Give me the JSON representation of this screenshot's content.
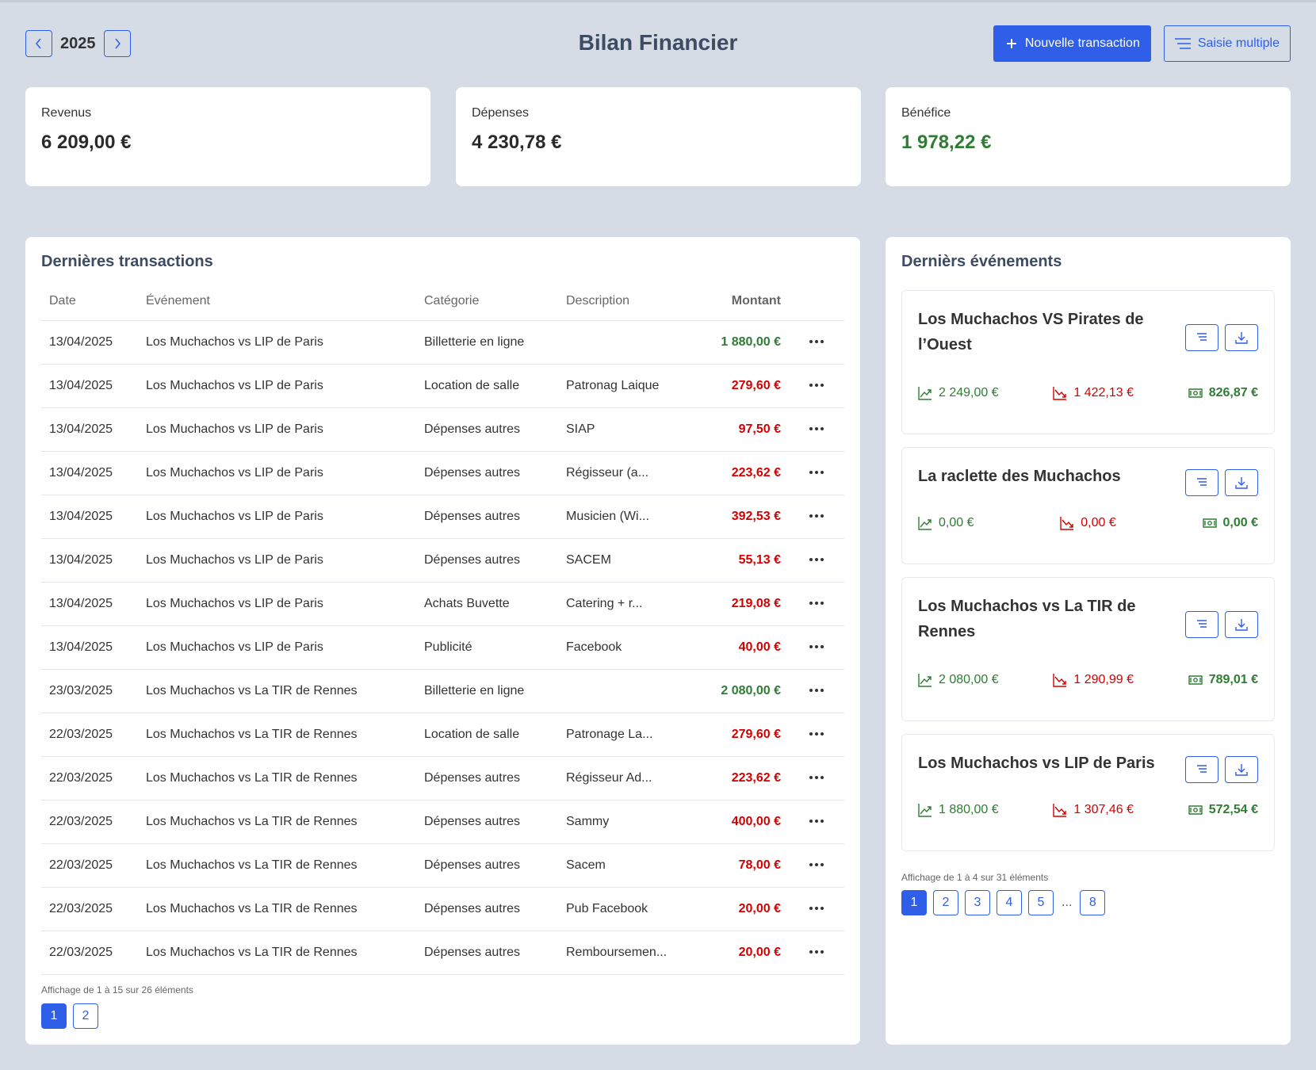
{
  "header": {
    "year": "2025",
    "title": "Bilan Financier",
    "new_transaction_label": "Nouvelle transaction",
    "bulk_entry_label": "Saisie multiple"
  },
  "stats": {
    "revenue": {
      "label": "Revenus",
      "value": "6 209,00 €"
    },
    "expenses": {
      "label": "Dépenses",
      "value": "4 230,78 €"
    },
    "profit": {
      "label": "Bénéfice",
      "value": "1 978,22 €"
    }
  },
  "transactions": {
    "title": "Dernières transactions",
    "columns": {
      "date": "Date",
      "event": "Événement",
      "category": "Catégorie",
      "description": "Description",
      "amount": "Montant"
    },
    "rows": [
      {
        "date": "13/04/2025",
        "event": "Los Muchachos vs LIP de Paris",
        "category": "Billetterie en ligne",
        "description": "",
        "amount": "1 880,00 €",
        "type": "income"
      },
      {
        "date": "13/04/2025",
        "event": "Los Muchachos vs LIP de Paris",
        "category": "Location de salle",
        "description": "Patronag Laique",
        "amount": "279,60 €",
        "type": "expense"
      },
      {
        "date": "13/04/2025",
        "event": "Los Muchachos vs LIP de Paris",
        "category": "Dépenses autres",
        "description": "SIAP",
        "amount": "97,50 €",
        "type": "expense"
      },
      {
        "date": "13/04/2025",
        "event": "Los Muchachos vs LIP de Paris",
        "category": "Dépenses autres",
        "description": "Régisseur (a...",
        "amount": "223,62 €",
        "type": "expense"
      },
      {
        "date": "13/04/2025",
        "event": "Los Muchachos vs LIP de Paris",
        "category": "Dépenses autres",
        "description": "Musicien (Wi...",
        "amount": "392,53 €",
        "type": "expense"
      },
      {
        "date": "13/04/2025",
        "event": "Los Muchachos vs LIP de Paris",
        "category": "Dépenses autres",
        "description": "SACEM",
        "amount": "55,13 €",
        "type": "expense"
      },
      {
        "date": "13/04/2025",
        "event": "Los Muchachos vs LIP de Paris",
        "category": "Achats Buvette",
        "description": "Catering + r...",
        "amount": "219,08 €",
        "type": "expense"
      },
      {
        "date": "13/04/2025",
        "event": "Los Muchachos vs LIP de Paris",
        "category": "Publicité",
        "description": "Facebook",
        "amount": "40,00 €",
        "type": "expense"
      },
      {
        "date": "23/03/2025",
        "event": "Los Muchachos vs La TIR de Rennes",
        "category": "Billetterie en ligne",
        "description": "",
        "amount": "2 080,00 €",
        "type": "income"
      },
      {
        "date": "22/03/2025",
        "event": "Los Muchachos vs La TIR de Rennes",
        "category": "Location de salle",
        "description": "Patronage La...",
        "amount": "279,60 €",
        "type": "expense"
      },
      {
        "date": "22/03/2025",
        "event": "Los Muchachos vs La TIR de Rennes",
        "category": "Dépenses autres",
        "description": "Régisseur Ad...",
        "amount": "223,62 €",
        "type": "expense"
      },
      {
        "date": "22/03/2025",
        "event": "Los Muchachos vs La TIR de Rennes",
        "category": "Dépenses autres",
        "description": "Sammy",
        "amount": "400,00 €",
        "type": "expense"
      },
      {
        "date": "22/03/2025",
        "event": "Los Muchachos vs La TIR de Rennes",
        "category": "Dépenses autres",
        "description": "Sacem",
        "amount": "78,00 €",
        "type": "expense"
      },
      {
        "date": "22/03/2025",
        "event": "Los Muchachos vs La TIR de Rennes",
        "category": "Dépenses autres",
        "description": "Pub Facebook",
        "amount": "20,00 €",
        "type": "expense"
      },
      {
        "date": "22/03/2025",
        "event": "Los Muchachos vs La TIR de Rennes",
        "category": "Dépenses autres",
        "description": "Remboursemen...",
        "amount": "20,00 €",
        "type": "expense"
      }
    ],
    "pager_info": "Affichage de 1 à 15 sur 26 éléments",
    "pages": [
      "1",
      "2"
    ],
    "active_page": "1"
  },
  "events": {
    "title": "Dernièrs événements",
    "items": [
      {
        "name": "Los Muchachos VS Pirates de l’Ouest",
        "income": "2 249,00 €",
        "expense": "1 422,13 €",
        "profit": "826,87 €"
      },
      {
        "name": "La raclette des Muchachos",
        "income": "0,00 €",
        "expense": "0,00 €",
        "profit": "0,00 €"
      },
      {
        "name": "Los Muchachos vs La TIR de Rennes",
        "income": "2 080,00 €",
        "expense": "1 290,99 €",
        "profit": "789,01 €"
      },
      {
        "name": "Los Muchachos vs LIP de Paris",
        "income": "1 880,00 €",
        "expense": "1 307,46 €",
        "profit": "572,54 €"
      }
    ],
    "pager_info": "Affichage de 1 à 4 sur 31 éléments",
    "pages": [
      "1",
      "2",
      "3",
      "4",
      "5",
      "...",
      "8"
    ],
    "active_page": "1"
  },
  "colors": {
    "background": "#d5dce5",
    "accent": "#2f5fe8",
    "income": "#2e7d32",
    "expense": "#d40000",
    "heading": "#3d4b63"
  }
}
